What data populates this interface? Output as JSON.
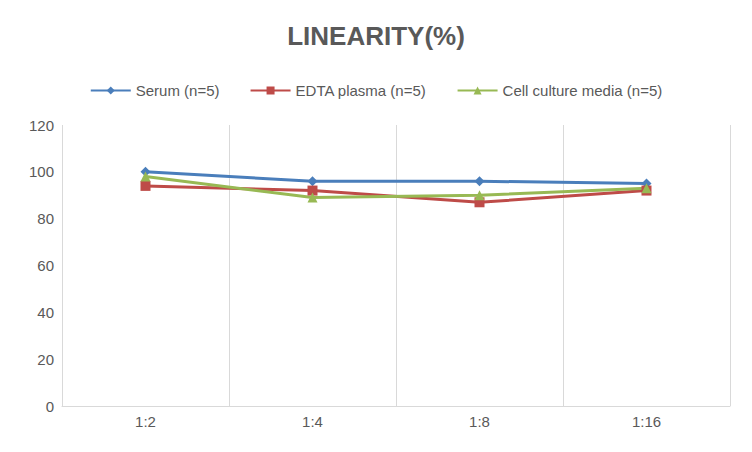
{
  "chart_data": {
    "type": "line",
    "title": "LINEARITY(%)",
    "categories": [
      "1:2",
      "1:4",
      "1:8",
      "1:16"
    ],
    "series": [
      {
        "name": "Serum (n=5)",
        "color": "#4a7ebb",
        "marker": "diamond",
        "values": [
          100,
          96,
          96,
          95
        ]
      },
      {
        "name": "EDTA plasma (n=5)",
        "color": "#be4b48",
        "marker": "square",
        "values": [
          94,
          92,
          87,
          92
        ]
      },
      {
        "name": "Cell culture media (n=5)",
        "color": "#98b954",
        "marker": "triangle",
        "values": [
          98,
          89,
          90,
          93
        ]
      }
    ],
    "ylim": [
      0,
      120
    ],
    "yticks": [
      0,
      20,
      40,
      60,
      80,
      100,
      120
    ],
    "grid": true,
    "legend": "top"
  }
}
